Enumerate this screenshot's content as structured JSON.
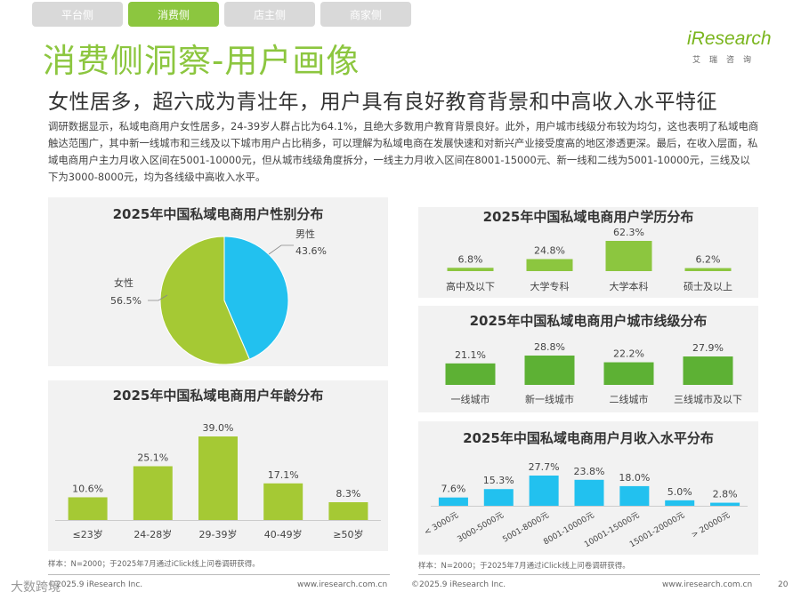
{
  "tabs": [
    {
      "label": "平台侧",
      "active": false
    },
    {
      "label": "消费侧",
      "active": true
    },
    {
      "label": "店主侧",
      "active": false
    },
    {
      "label": "商家侧",
      "active": false
    }
  ],
  "logo": {
    "main": "iResearch",
    "sub": "艾瑞咨询"
  },
  "title": "消费侧洞察-用户画像",
  "subtitle": "女性居多，超六成为青壮年，用户具有良好教育背景和中高收入水平特征",
  "description": "调研数据显示，私域电商用户女性居多，24-39岁人群占比为64.1%，且绝大多数用户教育背景良好。此外，用户城市线级分布较为均匀，这也表明了私域电商触达范围广，其中新一线城市和三线及以下城市用户占比稍多，可以理解为私域电商在发展快速和对新兴产业接受度高的地区渗透更深。最后，在收入层面，私域电商用户主力月收入区间在5001-10000元，但从城市线级角度拆分，一线主力月收入区间在8001-15000元、新一线和二线为5001-10000元，三线及以下为3000-8000元，均为各线级中高收入水平。",
  "colors": {
    "green": "#8cc63f",
    "chartGreen": "#a5c934",
    "darkGreen": "#5db134",
    "blue": "#22c1ef",
    "panel": "#f2f2f2",
    "label": "#444444"
  },
  "chart_data": [
    {
      "id": "gender",
      "type": "pie",
      "title": "2025年中国私域电商用户性别分布",
      "categories": [
        "男性",
        "女性"
      ],
      "values": [
        43.6,
        56.5
      ],
      "labels": [
        "43.6%",
        "56.5%"
      ],
      "colors": [
        "#22c1ef",
        "#a5c934"
      ]
    },
    {
      "id": "age",
      "type": "bar",
      "title": "2025年中国私域电商用户年龄分布",
      "categories": [
        "≤23岁",
        "24-28岁",
        "29-39岁",
        "40-49岁",
        "≥50岁"
      ],
      "values": [
        10.6,
        25.1,
        39.0,
        17.1,
        8.3
      ],
      "labels": [
        "10.6%",
        "25.1%",
        "39.0%",
        "17.1%",
        "8.3%"
      ],
      "ylim": [
        0,
        39.0
      ],
      "color": "#a5c934"
    },
    {
      "id": "education",
      "type": "bar",
      "title": "2025年中国私域电商用户学历分布",
      "categories": [
        "高中及以下",
        "大学专科",
        "大学本科",
        "硕士及以上"
      ],
      "values": [
        6.8,
        24.8,
        62.3,
        6.2
      ],
      "labels": [
        "6.8%",
        "24.8%",
        "62.3%",
        "6.2%"
      ],
      "ylim": [
        0,
        62.3
      ],
      "color": "#8cc63f"
    },
    {
      "id": "city",
      "type": "bar",
      "title": "2025年中国私域电商用户城市线级分布",
      "categories": [
        "一线城市",
        "新一线城市",
        "二线城市",
        "三线城市及以下"
      ],
      "values": [
        21.1,
        28.8,
        22.2,
        27.9
      ],
      "labels": [
        "21.1%",
        "28.8%",
        "22.2%",
        "27.9%"
      ],
      "ylim": [
        0,
        28.8
      ],
      "color": "#5db134"
    },
    {
      "id": "income",
      "type": "bar",
      "title": "2025年中国私域电商用户月收入水平分布",
      "categories": [
        "< 3000元",
        "3000-5000元",
        "5001-8000元",
        "8001-10000元",
        "10001-15000元",
        "15001-20000元",
        "> 20000元"
      ],
      "values": [
        7.6,
        15.3,
        27.7,
        23.8,
        18.0,
        5.0,
        2.8
      ],
      "labels": [
        "7.6%",
        "15.3%",
        "27.7%",
        "23.8%",
        "18.0%",
        "5.0%",
        "2.8%"
      ],
      "ylim": [
        0,
        27.7
      ],
      "color": "#22c1ef"
    }
  ],
  "footnotes": {
    "left": "样本：N=2000；于2025年7月通过iClick线上问卷调研获得。",
    "right": "样本：N=2000；于2025年7月通过iClick线上问卷调研获得。"
  },
  "footer": {
    "left_copyright": "©2025.9 iResearch Inc.",
    "left_url": "www.iresearch.com.cn",
    "right_copyright": "©2025.9 iResearch Inc.",
    "right_url": "www.iresearch.com.cn",
    "page": "20",
    "watermark": "大数跨境"
  }
}
